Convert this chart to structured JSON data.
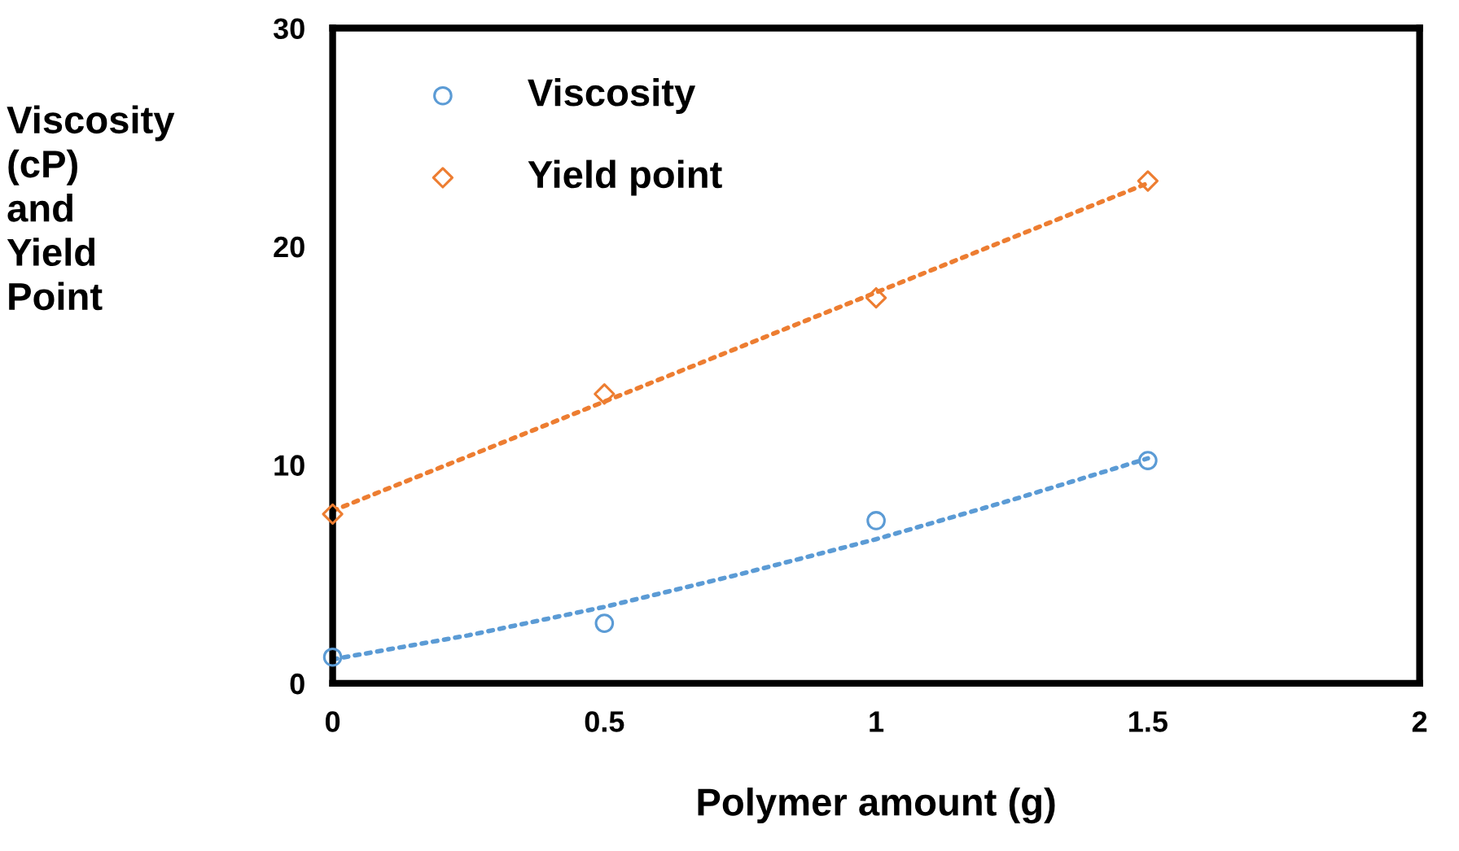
{
  "chart_data": {
    "type": "scatter",
    "xlabel": "Polymer amount (g)",
    "ylabel": "Viscosity\n(cP)\nand\nYield\nPoint",
    "xlim": [
      0,
      2
    ],
    "ylim": [
      0,
      30
    ],
    "xticks": [
      0,
      0.5,
      1,
      1.5,
      2
    ],
    "yticks": [
      0,
      10,
      20,
      30
    ],
    "grid": false,
    "legend": "top left",
    "series": [
      {
        "name": "Viscosity",
        "marker": "circle",
        "color": "#5b9bd5",
        "x": [
          0,
          0.5,
          1,
          1.5
        ],
        "values": [
          1.2,
          2.75,
          7.45,
          10.2
        ]
      },
      {
        "name": "Yield point",
        "marker": "diamond",
        "color": "#ed7d31",
        "x": [
          0,
          0.5,
          1,
          1.5
        ],
        "values": [
          7.75,
          13.25,
          17.65,
          23.0
        ]
      },
      {
        "type": "line",
        "line_style": "dotted",
        "color": "#5b9bd5",
        "x": [
          0,
          0.25,
          0.5,
          0.75,
          1,
          1.25,
          1.5
        ],
        "values": [
          1.1,
          2.2,
          3.5,
          5.0,
          6.6,
          8.4,
          10.3
        ]
      },
      {
        "type": "line",
        "line_style": "dotted",
        "color": "#ed7d31",
        "x": [
          0,
          1.5
        ],
        "values": [
          7.9,
          22.9
        ]
      }
    ]
  }
}
